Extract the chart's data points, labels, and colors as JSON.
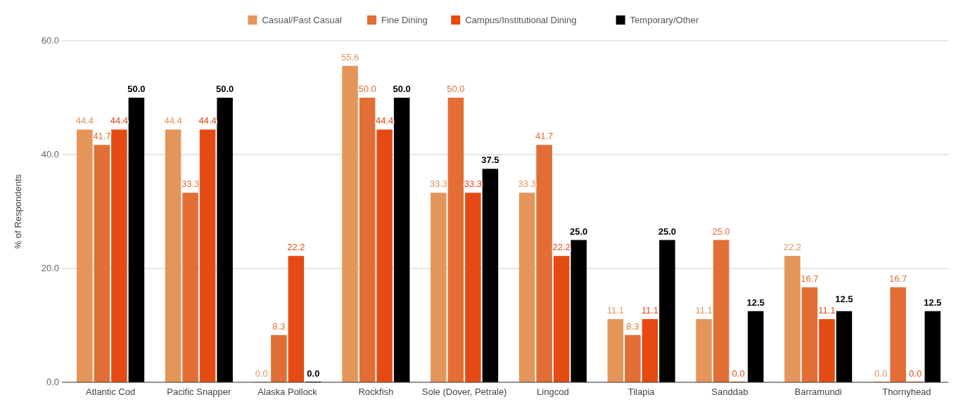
{
  "chart_data": {
    "type": "bar",
    "ylabel": "% of Respondents",
    "categories": [
      "Atlantic Cod",
      "Pacific Snapper",
      "Alaska Pollock",
      "Rockfish",
      "Sole (Dover, Petrale)",
      "Lingcod",
      "Tilapia",
      "Sanddab",
      "Barramundi",
      "Thornyhead"
    ],
    "series": [
      {
        "name": "Casual/Fast Casual",
        "color": "#e3955a",
        "values": [
          44.4,
          44.4,
          0,
          55.6,
          33.3,
          33.3,
          11.1,
          11.1,
          22.2,
          0
        ],
        "value_labels": [
          "44.4",
          "44.4",
          "0.0",
          "55.6",
          "33.3",
          "33.3",
          "11.1",
          "11.1",
          "22.2",
          "0.0"
        ]
      },
      {
        "name": "Fine Dining",
        "color": "#e26e35",
        "values": [
          41.7,
          33.3,
          8.3,
          50,
          50,
          41.7,
          8.3,
          25,
          16.7,
          16.7
        ],
        "value_labels": [
          "41.7",
          "33.3",
          "8.3",
          "50.0",
          "50.0",
          "41.7",
          "8.3",
          "25.0",
          "16.7",
          "16.7"
        ]
      },
      {
        "name": "Campus/Institutional Dining",
        "color": "#e64a13",
        "values": [
          44.4,
          44.4,
          22.2,
          44.4,
          33.3,
          22.2,
          11.1,
          0,
          11.1,
          0
        ],
        "value_labels": [
          "44.4",
          "44.4",
          "22.2",
          "44.4",
          "33.3",
          "22.2",
          "11.1",
          "0.0",
          "11.1",
          "0.0"
        ]
      },
      {
        "name": "Temporary/Other",
        "color": "#000000",
        "values": [
          50,
          50,
          0,
          50,
          37.5,
          25,
          25,
          12.5,
          12.5,
          12.5
        ],
        "value_labels": [
          "50.0",
          "50.0",
          "0.0",
          "50.0",
          "37.5",
          "25.0",
          "25.0",
          "12.5",
          "12.5",
          "12.5"
        ]
      }
    ],
    "ylim": [
      0,
      60
    ],
    "yticks": [
      {
        "value": 0,
        "label": "0.0"
      },
      {
        "value": 20,
        "label": "20.0"
      },
      {
        "value": 40,
        "label": "40.0"
      },
      {
        "value": 60,
        "label": "60.0"
      }
    ],
    "grid": "y",
    "legend": "top"
  }
}
